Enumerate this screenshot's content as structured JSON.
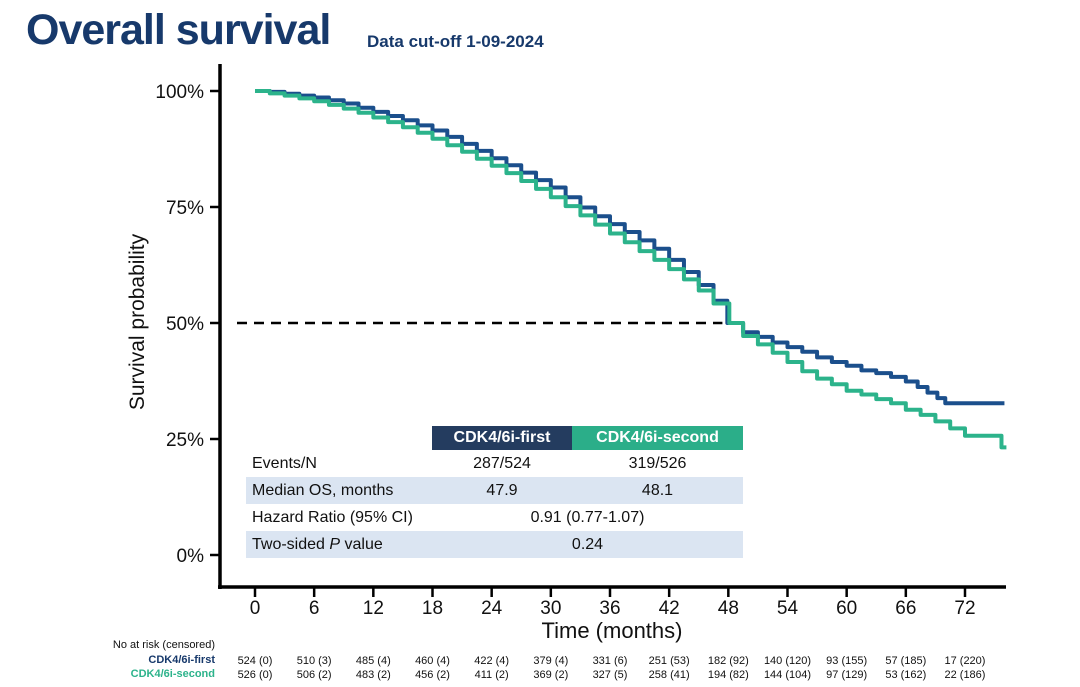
{
  "header": {
    "title": "Overall survival",
    "subtitle": "Data cut-off 1-09-2024"
  },
  "colors": {
    "title_navy": "#17396B",
    "header_navy": "#243C5F",
    "header_green": "#2BAE89",
    "curve_blue": "#1B4F8C",
    "curve_green": "#2CB38B",
    "row_stripe": "#DBE5F2",
    "axis_black": "#000000"
  },
  "chart_data": {
    "type": "line",
    "subtype": "kaplan-meier-step",
    "title": "Overall survival",
    "xlabel": "Time (months)",
    "ylabel": "Survival probability",
    "xlim": [
      0,
      77
    ],
    "ylim": [
      0,
      100
    ],
    "grid": "off",
    "xticks": [
      0,
      6,
      12,
      18,
      24,
      30,
      36,
      42,
      48,
      54,
      60,
      66,
      72
    ],
    "yticks": [
      {
        "value": 100,
        "label": "100%"
      },
      {
        "value": 75,
        "label": "75%"
      },
      {
        "value": 50,
        "label": "50%"
      },
      {
        "value": 25,
        "label": "25%"
      },
      {
        "value": 0,
        "label": "0%"
      }
    ],
    "reference_line": {
      "y": 50,
      "style": "dashed",
      "x_start": -1.8,
      "x_end": 47.4
    },
    "series": [
      {
        "name": "CDK4/6i-first",
        "color": "#1B4F8C",
        "median_months": 47.9,
        "points": [
          [
            0,
            100
          ],
          [
            1.5,
            99.8
          ],
          [
            3,
            99.4
          ],
          [
            4.5,
            99.0
          ],
          [
            6,
            98.6
          ],
          [
            7.5,
            98.0
          ],
          [
            9,
            97.3
          ],
          [
            10.5,
            96.4
          ],
          [
            12,
            95.5
          ],
          [
            13.5,
            94.6
          ],
          [
            15,
            93.7
          ],
          [
            16.5,
            92.6
          ],
          [
            18,
            91.5
          ],
          [
            19.5,
            90.1
          ],
          [
            21,
            88.6
          ],
          [
            22.5,
            87.1
          ],
          [
            24,
            85.5
          ],
          [
            25.5,
            84.0
          ],
          [
            27,
            82.4
          ],
          [
            28.5,
            80.8
          ],
          [
            30,
            79.2
          ],
          [
            31.5,
            77.1
          ],
          [
            33,
            74.9
          ],
          [
            34.5,
            73.0
          ],
          [
            36,
            71.3
          ],
          [
            37.5,
            69.6
          ],
          [
            39,
            67.8
          ],
          [
            40.5,
            66.0
          ],
          [
            42,
            63.6
          ],
          [
            43.5,
            61.0
          ],
          [
            45,
            58.2
          ],
          [
            46.5,
            54.8
          ],
          [
            47.9,
            50.0
          ],
          [
            49.5,
            48.0
          ],
          [
            51,
            47.0
          ],
          [
            52.5,
            45.8
          ],
          [
            54,
            44.8
          ],
          [
            55.5,
            43.8
          ],
          [
            57,
            42.6
          ],
          [
            58.5,
            41.6
          ],
          [
            60,
            40.8
          ],
          [
            61.5,
            39.8
          ],
          [
            63,
            39.2
          ],
          [
            64.5,
            38.4
          ],
          [
            66,
            37.4
          ],
          [
            67.2,
            36.2
          ],
          [
            68.2,
            35.0
          ],
          [
            69.2,
            33.8
          ],
          [
            70,
            32.7
          ],
          [
            76,
            32.7
          ]
        ]
      },
      {
        "name": "CDK4/6i-second",
        "color": "#2CB38B",
        "median_months": 48.1,
        "points": [
          [
            0,
            100
          ],
          [
            1.5,
            99.5
          ],
          [
            3,
            99.0
          ],
          [
            4.5,
            98.4
          ],
          [
            6,
            97.8
          ],
          [
            7.5,
            97.0
          ],
          [
            9,
            96.2
          ],
          [
            10.5,
            95.3
          ],
          [
            12,
            94.3
          ],
          [
            13.5,
            93.3
          ],
          [
            15,
            92.2
          ],
          [
            16.5,
            91.0
          ],
          [
            18,
            89.7
          ],
          [
            19.5,
            88.3
          ],
          [
            21,
            86.9
          ],
          [
            22.5,
            85.4
          ],
          [
            24,
            83.9
          ],
          [
            25.5,
            82.3
          ],
          [
            27,
            80.6
          ],
          [
            28.5,
            78.9
          ],
          [
            30,
            77.1
          ],
          [
            31.5,
            75.2
          ],
          [
            33,
            73.2
          ],
          [
            34.5,
            71.2
          ],
          [
            36,
            69.3
          ],
          [
            37.5,
            67.4
          ],
          [
            39,
            65.5
          ],
          [
            40.5,
            63.6
          ],
          [
            42,
            61.6
          ],
          [
            43.5,
            59.4
          ],
          [
            45,
            57.0
          ],
          [
            46.5,
            54.2
          ],
          [
            48.1,
            50.0
          ],
          [
            49.5,
            47.2
          ],
          [
            51,
            45.4
          ],
          [
            52.5,
            43.6
          ],
          [
            54,
            41.6
          ],
          [
            55.5,
            39.6
          ],
          [
            57,
            38.0
          ],
          [
            58.5,
            36.8
          ],
          [
            60,
            35.4
          ],
          [
            61.5,
            34.6
          ],
          [
            63,
            33.6
          ],
          [
            64.5,
            32.7
          ],
          [
            66,
            31.3
          ],
          [
            67.5,
            30.2
          ],
          [
            69,
            28.8
          ],
          [
            70.5,
            27.3
          ],
          [
            72,
            25.7
          ],
          [
            75.5,
            25.7
          ],
          [
            75.7,
            23.2
          ],
          [
            76.2,
            23.2
          ]
        ]
      }
    ]
  },
  "stats_table": {
    "col1": "CDK4/6i-first",
    "col2": "CDK4/6i-second",
    "rows": [
      {
        "label": "Events/N",
        "v1": "287/524",
        "v2": "319/526"
      },
      {
        "label": "Median OS, months",
        "v1": "47.9",
        "v2": "48.1"
      },
      {
        "label": "Hazard Ratio (95% CI)",
        "span": "0.91 (0.77-1.07)"
      },
      {
        "label_prefix": "Two-sided ",
        "label_italic": "P",
        "label_suffix": " value",
        "span": "0.24"
      }
    ]
  },
  "risk_table": {
    "caption": "No at risk (censored)",
    "times": [
      0,
      6,
      12,
      18,
      24,
      30,
      36,
      42,
      48,
      54,
      60,
      66,
      72
    ],
    "rows": [
      {
        "label": "CDK4/6i-first",
        "color": "#17396B",
        "counts": [
          "524 (0)",
          "510 (3)",
          "485 (4)",
          "460 (4)",
          "422 (4)",
          "379 (4)",
          "331 (6)",
          "251 (53)",
          "182 (92)",
          "140 (120)",
          "93 (155)",
          "57 (185)",
          "17 (220)"
        ]
      },
      {
        "label": "CDK4/6i-second",
        "color": "#2CB38B",
        "counts": [
          "526 (0)",
          "506 (2)",
          "483 (2)",
          "456 (2)",
          "411 (2)",
          "369 (2)",
          "327 (5)",
          "258 (41)",
          "194 (82)",
          "144 (104)",
          "97 (129)",
          "53 (162)",
          "22 (186)"
        ]
      }
    ]
  }
}
